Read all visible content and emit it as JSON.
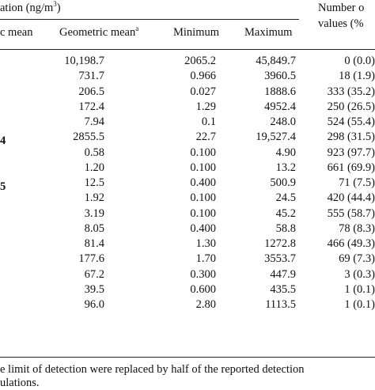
{
  "header": {
    "group_title": "ation (ng/m",
    "group_title_sup": "3",
    "group_title_end": ")",
    "col_arith": "c mean",
    "col_geo": "Geometric mean",
    "col_geo_sup": "a",
    "col_min": "Minimum",
    "col_max": "Maximum",
    "col_nd_line1": "Number o",
    "col_nd_line2": "values (%"
  },
  "row_labels": {
    "r7": "4",
    "r10": "5"
  },
  "rows": [
    {
      "geo": "10,198.7",
      "min": "2065.2",
      "max": "45,849.7",
      "nd": "0 (0.0)"
    },
    {
      "geo": "731.7",
      "min": "0.966",
      "max": "3960.5",
      "nd": "18 (1.9)"
    },
    {
      "geo": "206.5",
      "min": "0.027",
      "max": "1888.6",
      "nd": "333 (35.2)"
    },
    {
      "geo": "172.4",
      "min": "1.29",
      "max": "4952.4",
      "nd": "250 (26.5)"
    },
    {
      "geo": "7.94",
      "min": "0.1",
      "max": "248.0",
      "nd": "524 (55.4)"
    },
    {
      "geo": "2855.5",
      "min": "22.7",
      "max": "19,527.4",
      "nd": "298 (31.5)"
    },
    {
      "geo": "0.58",
      "min": "0.100",
      "max": "4.90",
      "nd": "923 (97.7)"
    },
    {
      "geo": "1.20",
      "min": "0.100",
      "max": "13.2",
      "nd": "661 (69.9)"
    },
    {
      "geo": "12.5",
      "min": "0.400",
      "max": "500.9",
      "nd": "71 (7.5)"
    },
    {
      "geo": "1.92",
      "min": "0.100",
      "max": "24.5",
      "nd": "420 (44.4)"
    },
    {
      "geo": "3.19",
      "min": "0.100",
      "max": "45.2",
      "nd": "555 (58.7)"
    },
    {
      "geo": "8.05",
      "min": "0.400",
      "max": "58.8",
      "nd": "78 (8.3)"
    },
    {
      "geo": "81.4",
      "min": "1.30",
      "max": "1272.8",
      "nd": "466 (49.3)"
    },
    {
      "geo": "177.6",
      "min": "1.70",
      "max": "3553.7",
      "nd": "69 (7.3)"
    },
    {
      "geo": "67.2",
      "min": "0.300",
      "max": "447.9",
      "nd": "3 (0.3)"
    },
    {
      "geo": "39.5",
      "min": "0.600",
      "max": "435.5",
      "nd": "1 (0.1)"
    },
    {
      "geo": "96.0",
      "min": "2.80",
      "max": "1113.5",
      "nd": "1 (0.1)"
    }
  ],
  "footnote": {
    "line1": "e limit of detection were replaced by half of the reported detection",
    "line2": "ulations."
  }
}
